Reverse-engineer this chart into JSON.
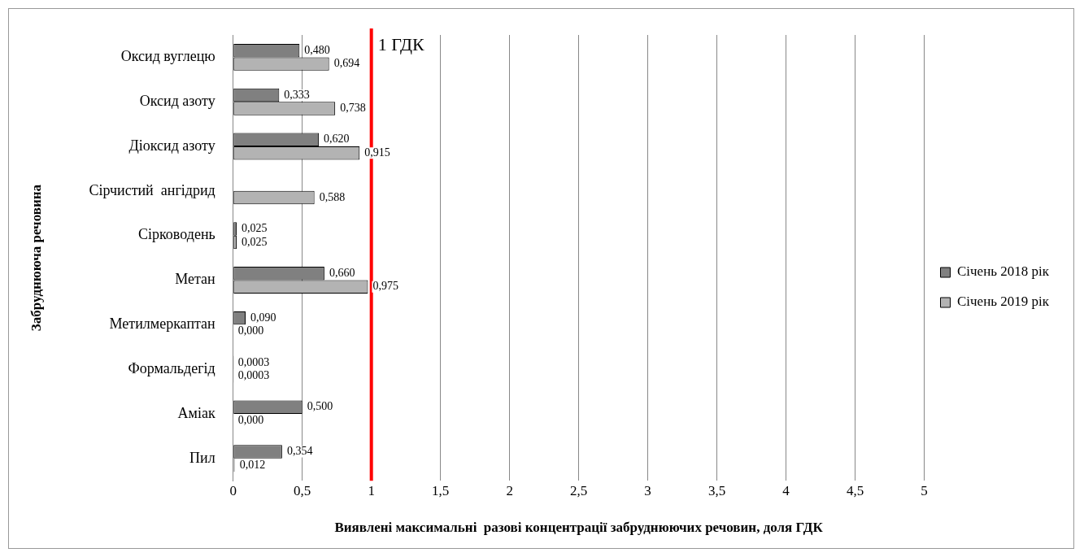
{
  "chart_data": {
    "type": "bar",
    "orientation": "horizontal",
    "xlabel": "Виявлені максимальні  разові концентрації забруднюючих речовин, доля ГДК",
    "ylabel": "Забруднююча речовина",
    "categories": [
      "Оксид вуглецю",
      "Оксид азоту",
      "Діоксид азоту",
      "Сірчистий  ангідрид",
      "Сірководень",
      "Метан",
      "Метилмеркаптан",
      "Формальдегід",
      "Аміак",
      "Пил"
    ],
    "series": [
      {
        "name": "Січень 2018 рік",
        "color": "#808080",
        "values": [
          0.48,
          0.333,
          0.62,
          null,
          0.025,
          0.66,
          0.09,
          0.0003,
          0.5,
          0.354
        ],
        "value_labels": [
          "0,480",
          "0,333",
          "0,620",
          null,
          "0,025",
          "0,660",
          "0,090",
          "0,0003",
          "0,500",
          "0,354"
        ]
      },
      {
        "name": "Січень 2019 рік",
        "color": "#b3b3b3",
        "values": [
          0.694,
          0.738,
          0.915,
          0.588,
          0.025,
          0.975,
          0,
          0.0003,
          0,
          0.012
        ],
        "value_labels": [
          "0,694",
          "0,738",
          "0,915",
          "0,588",
          "0,025",
          "0,975",
          "0,000",
          "0,0003",
          "0,000",
          "0,012"
        ]
      }
    ],
    "xlim": [
      0,
      5
    ],
    "xticks": [
      0,
      {
        "value": 0.5,
        "label": "0,5"
      },
      1,
      {
        "value": 1.5,
        "label": "1,5"
      },
      2,
      {
        "value": 2.5,
        "label": "2,5"
      },
      3,
      {
        "value": 3.5,
        "label": "3,5"
      },
      4,
      {
        "value": 4.5,
        "label": "4,5"
      },
      5
    ],
    "grid": "x",
    "legend": "right",
    "ref_lines": [
      {
        "axis": "x",
        "value": 1,
        "label": "1 ГДК",
        "color": "#ff0000"
      }
    ]
  }
}
